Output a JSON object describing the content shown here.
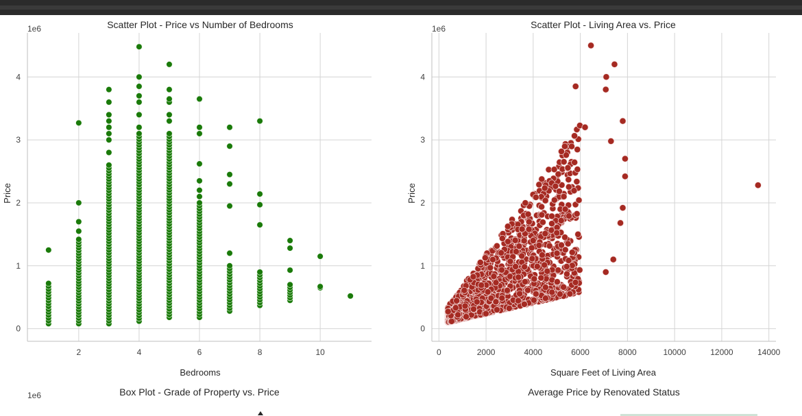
{
  "chart_data": [
    {
      "type": "scatter",
      "title": "Scatter Plot - Price vs Number of Bedrooms",
      "xlabel": "Bedrooms",
      "ylabel": "Price",
      "y_scale_label": "1e6",
      "xlim": [
        0.3,
        11.7
      ],
      "ylim": [
        -0.2,
        4.7
      ],
      "xticks": [
        2,
        4,
        6,
        8,
        10
      ],
      "yticks": [
        0,
        1,
        2,
        3,
        4
      ],
      "grid": true,
      "color": "#1a7a0a",
      "points_by_x": [
        {
          "x": 1,
          "min": 0.08,
          "max": 0.72,
          "extra": [
            1.25
          ]
        },
        {
          "x": 2,
          "min": 0.08,
          "max": 1.42,
          "extra": [
            1.55,
            1.7,
            2.0,
            3.27
          ]
        },
        {
          "x": 3,
          "min": 0.08,
          "max": 2.6,
          "extra": [
            2.8,
            3.0,
            3.1,
            3.2,
            3.3,
            3.4,
            3.6,
            3.8
          ]
        },
        {
          "x": 4,
          "min": 0.12,
          "max": 3.1,
          "extra": [
            3.2,
            3.4,
            3.6,
            3.7,
            3.85,
            4.0,
            4.48
          ]
        },
        {
          "x": 5,
          "min": 0.18,
          "max": 3.1,
          "extra": [
            3.3,
            3.4,
            3.6,
            3.65,
            3.8,
            4.2
          ]
        },
        {
          "x": 6,
          "min": 0.18,
          "max": 2.0,
          "extra": [
            2.1,
            2.2,
            2.35,
            2.62,
            3.1,
            3.2,
            3.65
          ]
        },
        {
          "x": 7,
          "min": 0.28,
          "max": 1.0,
          "extra": [
            1.2,
            1.95,
            2.3,
            2.45,
            2.9,
            3.2
          ]
        },
        {
          "x": 8,
          "min": 0.37,
          "max": 0.9,
          "extra": [
            1.65,
            1.97,
            2.14,
            3.3
          ]
        },
        {
          "x": 9,
          "min": 0.45,
          "max": 0.7,
          "extra": [
            0.93,
            1.28,
            1.4
          ]
        },
        {
          "x": 10,
          "min": 0.65,
          "max": 0.67,
          "extra": [
            1.15
          ]
        },
        {
          "x": 11,
          "min": 0.52,
          "max": 0.52,
          "extra": []
        }
      ]
    },
    {
      "type": "scatter",
      "title": "Scatter Plot - Living Area vs. Price",
      "xlabel": "Square Feet of Living Area",
      "ylabel": "Price",
      "y_scale_label": "1e6",
      "xlim": [
        -300,
        14300
      ],
      "ylim": [
        -0.2,
        4.7
      ],
      "xticks": [
        0,
        2000,
        4000,
        6000,
        8000,
        10000,
        12000,
        14000
      ],
      "yticks": [
        0,
        1,
        2,
        3,
        4
      ],
      "grid": true,
      "color": "#a52a22",
      "outliers": [
        {
          "x": 6450,
          "y": 4.5
        },
        {
          "x": 7450,
          "y": 4.2
        },
        {
          "x": 7100,
          "y": 4.0
        },
        {
          "x": 7080,
          "y": 3.8
        },
        {
          "x": 7800,
          "y": 3.3
        },
        {
          "x": 7300,
          "y": 2.98
        },
        {
          "x": 7900,
          "y": 2.7
        },
        {
          "x": 7900,
          "y": 2.42
        },
        {
          "x": 13540,
          "y": 2.28
        },
        {
          "x": 7800,
          "y": 1.92
        },
        {
          "x": 7700,
          "y": 1.68
        },
        {
          "x": 7400,
          "y": 1.1
        },
        {
          "x": 7080,
          "y": 0.9
        },
        {
          "x": 6200,
          "y": 3.2
        },
        {
          "x": 5800,
          "y": 3.85
        }
      ]
    },
    {
      "type": "box",
      "title": "Box Plot - Grade of Property vs. Price",
      "y_scale_label": "1e6"
    },
    {
      "type": "bar",
      "title": "Average Price by Renovated Status"
    }
  ]
}
